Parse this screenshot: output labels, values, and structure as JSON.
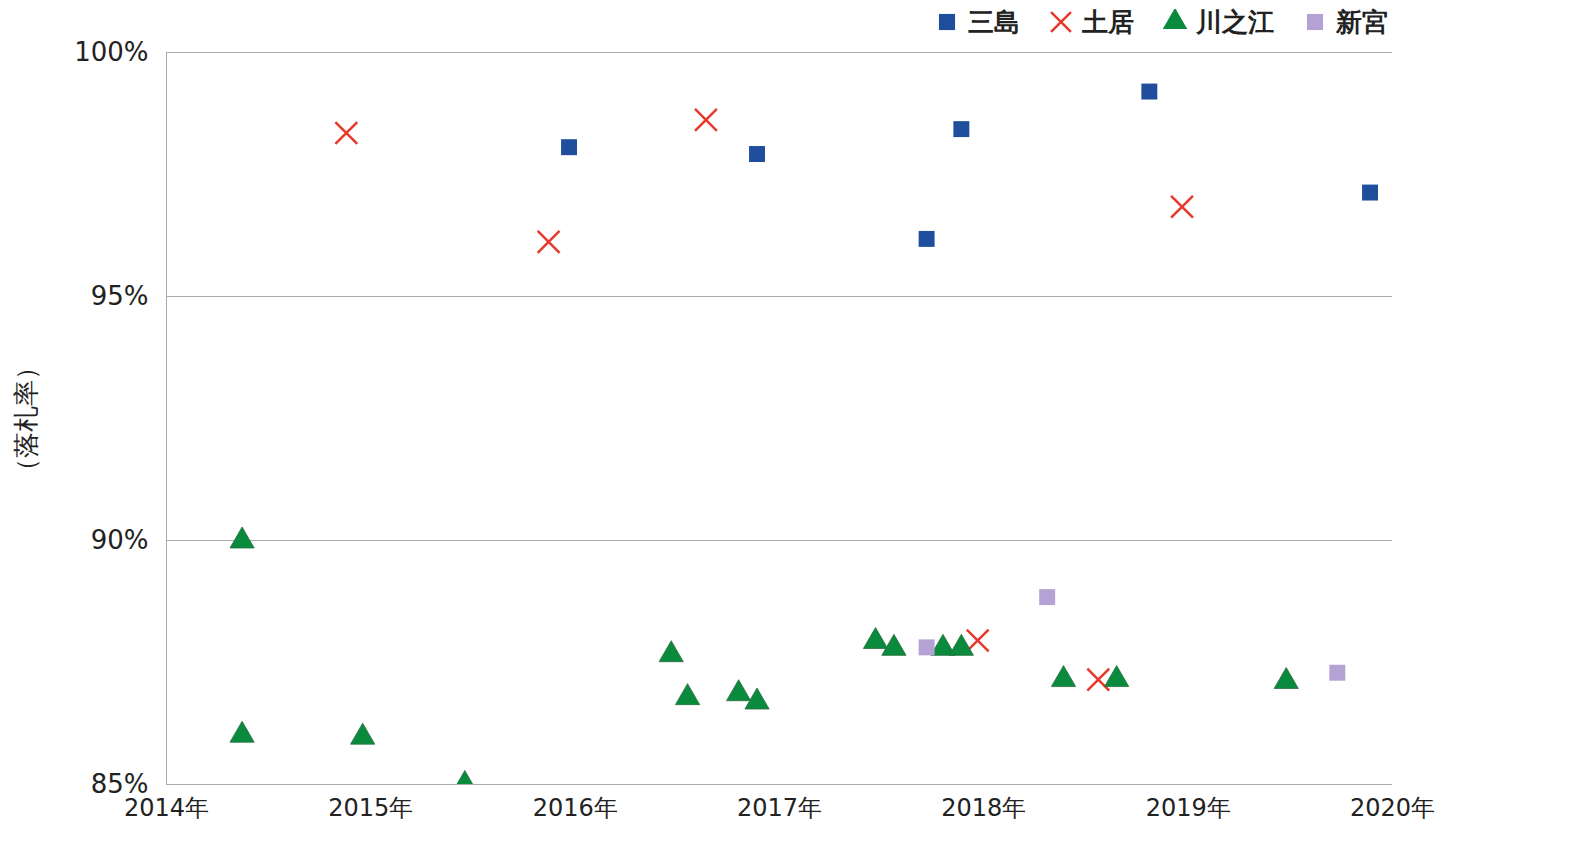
{
  "chart_data": {
    "type": "scatter",
    "y_label": "（落札率）",
    "xlim": [
      2014,
      2020
    ],
    "xticks": [
      {
        "value": 2014,
        "label": "2014年"
      },
      {
        "value": 2015,
        "label": "2015年"
      },
      {
        "value": 2016,
        "label": "2016年"
      },
      {
        "value": 2017,
        "label": "2017年"
      },
      {
        "value": 2018,
        "label": "2018年"
      },
      {
        "value": 2019,
        "label": "2019年"
      },
      {
        "value": 2020,
        "label": "2020年"
      }
    ],
    "ylim": [
      85,
      100
    ],
    "yticks": [
      {
        "value": 85,
        "label": "85%"
      },
      {
        "value": 90,
        "label": "90%"
      },
      {
        "value": 95,
        "label": "95%"
      },
      {
        "value": 100,
        "label": "100%"
      }
    ],
    "grid": true,
    "legend": "top-right",
    "series": [
      {
        "name": "三島",
        "color": "#1f4e9c",
        "marker": "square",
        "x": [
          2015.97,
          2016.89,
          2017.72,
          2017.89,
          2018.81,
          2019.89
        ],
        "values": [
          98.06,
          97.92,
          96.18,
          98.43,
          99.2,
          97.13
        ]
      },
      {
        "name": "土居",
        "color": "#e8382a",
        "marker": "cross",
        "x": [
          2014.88,
          2015.87,
          2016.64,
          2017.97,
          2018.56,
          2018.97
        ],
        "values": [
          98.35,
          96.12,
          98.62,
          87.95,
          87.15,
          96.84
        ]
      },
      {
        "name": "川之江",
        "color": "#0a8a3c",
        "marker": "triangle",
        "x": [
          2014.37,
          2014.37,
          2014.96,
          2015.46,
          2016.47,
          2016.55,
          2016.8,
          2016.89,
          2017.47,
          2017.56,
          2017.8,
          2017.89,
          2018.39,
          2018.65,
          2019.48
        ],
        "values": [
          89.99,
          86.01,
          85.97,
          85.0,
          87.66,
          86.78,
          86.86,
          86.69,
          87.93,
          87.79,
          87.79,
          87.79,
          87.15,
          87.15,
          87.11
        ]
      },
      {
        "name": "新宮",
        "color": "#b3a2d3",
        "marker": "square",
        "x": [
          2017.72,
          2018.31,
          2019.73
        ],
        "values": [
          87.81,
          88.84,
          87.29
        ]
      }
    ]
  }
}
